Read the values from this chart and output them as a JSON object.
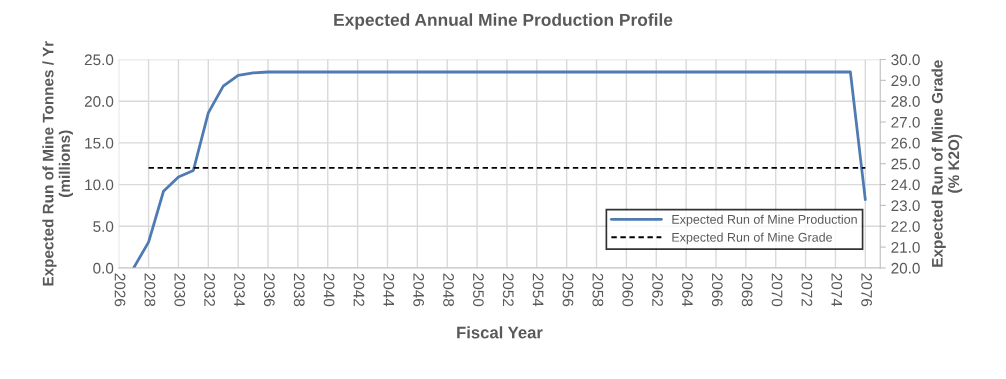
{
  "chart_data": {
    "type": "line",
    "title": "Expected Annual Mine Production Profile",
    "xlabel": "Fiscal Year",
    "ylabel": "Expected Run of Mine Tonnes / Yr\n(millions)",
    "y2label": "Expected Run of Mine Grade\n(% K2O)",
    "series": [
      {
        "name": "Expected Run of Mine Production",
        "color": "#4f7bb3",
        "line_style": "solid",
        "x": [
          2027,
          2028,
          2029,
          2030,
          2031,
          2032,
          2033,
          2034,
          2035,
          2036,
          2037,
          2038,
          2039,
          2040,
          2041,
          2042,
          2043,
          2044,
          2045,
          2046,
          2047,
          2048,
          2049,
          2050,
          2051,
          2052,
          2053,
          2054,
          2055,
          2056,
          2057,
          2058,
          2059,
          2060,
          2061,
          2062,
          2063,
          2064,
          2065,
          2066,
          2067,
          2068,
          2069,
          2070,
          2071,
          2072,
          2073,
          2074,
          2075,
          2076
        ],
        "values": [
          0,
          3.1,
          9.2,
          10.9,
          11.7,
          18.6,
          21.8,
          23.1,
          23.4,
          23.5,
          23.5,
          23.5,
          23.5,
          23.5,
          23.5,
          23.5,
          23.5,
          23.5,
          23.5,
          23.5,
          23.5,
          23.5,
          23.5,
          23.5,
          23.5,
          23.5,
          23.5,
          23.5,
          23.5,
          23.5,
          23.5,
          23.5,
          23.5,
          23.5,
          23.5,
          23.5,
          23.5,
          23.5,
          23.5,
          23.5,
          23.5,
          23.5,
          23.5,
          23.5,
          23.5,
          23.5,
          23.5,
          23.5,
          23.5,
          8.2
        ]
      },
      {
        "name": "Expected Run of Mine Grade",
        "color": "#000000",
        "line_style": "dashed",
        "axis": "y2",
        "x": [
          2028,
          2076
        ],
        "values": [
          24.8,
          24.8
        ]
      }
    ],
    "xlim": [
      2026,
      2077
    ],
    "xticks": [
      2026,
      2028,
      2030,
      2032,
      2034,
      2036,
      2038,
      2040,
      2042,
      2044,
      2046,
      2048,
      2050,
      2052,
      2054,
      2056,
      2058,
      2060,
      2062,
      2064,
      2066,
      2068,
      2070,
      2072,
      2074,
      2076
    ],
    "ylim": [
      0,
      25
    ],
    "yticks": [
      {
        "value": 0,
        "label": "0.0"
      },
      {
        "value": 5,
        "label": "5.0"
      },
      {
        "value": 10,
        "label": "10.0"
      },
      {
        "value": 15,
        "label": "15.0"
      },
      {
        "value": 20,
        "label": "20.0"
      },
      {
        "value": 25,
        "label": "25.0"
      }
    ],
    "y2lim": [
      20,
      30
    ],
    "y2ticks": [
      {
        "value": 20,
        "label": "20.0"
      },
      {
        "value": 21,
        "label": "21.0"
      },
      {
        "value": 22,
        "label": "22.0"
      },
      {
        "value": 23,
        "label": "23.0"
      },
      {
        "value": 24,
        "label": "24.0"
      },
      {
        "value": 25,
        "label": "25.0"
      },
      {
        "value": 26,
        "label": "26.0"
      },
      {
        "value": 27,
        "label": "27.0"
      },
      {
        "value": 28,
        "label": "28.0"
      },
      {
        "value": 29,
        "label": "29.0"
      },
      {
        "value": 30,
        "label": "30.0"
      }
    ],
    "grid": true,
    "legend": "bottom right",
    "marker": "none"
  }
}
